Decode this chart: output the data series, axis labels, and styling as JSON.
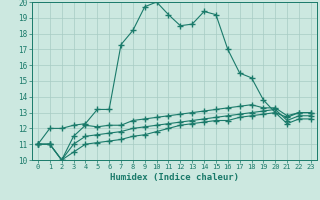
{
  "x": [
    0,
    1,
    2,
    3,
    4,
    5,
    6,
    7,
    8,
    9,
    10,
    11,
    12,
    13,
    14,
    15,
    16,
    17,
    18,
    19,
    20,
    21,
    22,
    23
  ],
  "line1": [
    11,
    12,
    12,
    12.2,
    12.3,
    13.2,
    13.2,
    17.3,
    18.2,
    19.7,
    20.0,
    19.2,
    18.5,
    18.6,
    19.4,
    19.2,
    17.0,
    15.5,
    15.2,
    13.8,
    13.0,
    12.7,
    13.0,
    13.0
  ],
  "line2": [
    11,
    11,
    10,
    11.5,
    12.2,
    12.1,
    12.2,
    12.2,
    12.5,
    12.6,
    12.7,
    12.8,
    12.9,
    13.0,
    13.1,
    13.2,
    13.3,
    13.4,
    13.5,
    13.3,
    13.3,
    12.8,
    13.0,
    13.0
  ],
  "line3": [
    11,
    11,
    10,
    11.0,
    11.5,
    11.6,
    11.7,
    11.8,
    12.0,
    12.1,
    12.2,
    12.3,
    12.4,
    12.5,
    12.6,
    12.7,
    12.8,
    12.9,
    13.0,
    13.1,
    13.2,
    12.5,
    12.8,
    12.8
  ],
  "line4": [
    11,
    11,
    10,
    10.5,
    11.0,
    11.1,
    11.2,
    11.3,
    11.5,
    11.6,
    11.8,
    12.0,
    12.2,
    12.3,
    12.4,
    12.5,
    12.5,
    12.7,
    12.8,
    12.9,
    13.0,
    12.3,
    12.6,
    12.6
  ],
  "line_color": "#1a7a6a",
  "background_color": "#cce8e0",
  "grid_color": "#a8ccc4",
  "xlabel": "Humidex (Indice chaleur)",
  "xlim": [
    -0.5,
    23.5
  ],
  "ylim": [
    10,
    20
  ],
  "yticks": [
    10,
    11,
    12,
    13,
    14,
    15,
    16,
    17,
    18,
    19,
    20
  ],
  "xticks": [
    0,
    1,
    2,
    3,
    4,
    5,
    6,
    7,
    8,
    9,
    10,
    11,
    12,
    13,
    14,
    15,
    16,
    17,
    18,
    19,
    20,
    21,
    22,
    23
  ]
}
